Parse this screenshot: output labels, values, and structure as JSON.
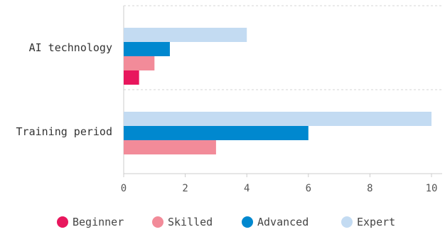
{
  "chart_data": {
    "type": "bar",
    "orientation": "horizontal",
    "categories": [
      "AI technology",
      "Training period"
    ],
    "series": [
      {
        "name": "Beginner",
        "color": "#e8175d",
        "values": [
          0.5,
          0
        ]
      },
      {
        "name": "Skilled",
        "color": "#f28b99",
        "values": [
          1,
          3
        ]
      },
      {
        "name": "Advanced",
        "color": "#0088cf",
        "values": [
          1.5,
          6
        ]
      },
      {
        "name": "Expert",
        "color": "#c3dbf2",
        "values": [
          4,
          10
        ]
      }
    ],
    "xlim": [
      0,
      10
    ],
    "xticks": [
      "0",
      "2",
      "4",
      "6",
      "8",
      "10"
    ],
    "grid": false,
    "legend": "bottom"
  }
}
